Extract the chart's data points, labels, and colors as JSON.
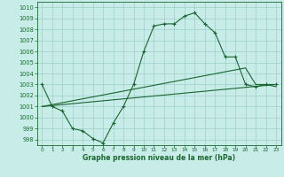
{
  "title": "Graphe pression niveau de la mer (hPa)",
  "bg_color": "#c8ece8",
  "grid_color": "#9ececa",
  "line_color": "#1a6630",
  "xlim": [
    -0.5,
    23.5
  ],
  "ylim": [
    997.5,
    1010.5
  ],
  "yticks": [
    998,
    999,
    1000,
    1001,
    1002,
    1003,
    1004,
    1005,
    1006,
    1007,
    1008,
    1009,
    1010
  ],
  "xticks": [
    0,
    1,
    2,
    3,
    4,
    5,
    6,
    7,
    8,
    9,
    10,
    11,
    12,
    13,
    14,
    15,
    16,
    17,
    18,
    19,
    20,
    21,
    22,
    23
  ],
  "line1_x": [
    0,
    1,
    2,
    3,
    4,
    5,
    6,
    7,
    8,
    9,
    10,
    11,
    12,
    13,
    14,
    15,
    16,
    17,
    18,
    19,
    20,
    21,
    22,
    23
  ],
  "line1_y": [
    1003.0,
    1001.0,
    1000.6,
    999.0,
    998.8,
    998.1,
    997.7,
    999.5,
    1001.0,
    1003.0,
    1006.0,
    1008.3,
    1008.5,
    1008.5,
    1009.2,
    1009.5,
    1008.5,
    1007.7,
    1005.5,
    1005.5,
    1003.0,
    1002.8,
    1003.0,
    1003.0
  ],
  "line2_x": [
    0,
    23
  ],
  "line2_y": [
    1001.0,
    1003.0
  ],
  "line3_x": [
    0,
    20,
    21,
    22,
    23
  ],
  "line3_y": [
    1001.0,
    1004.5,
    1003.0,
    1003.0,
    1002.8
  ]
}
